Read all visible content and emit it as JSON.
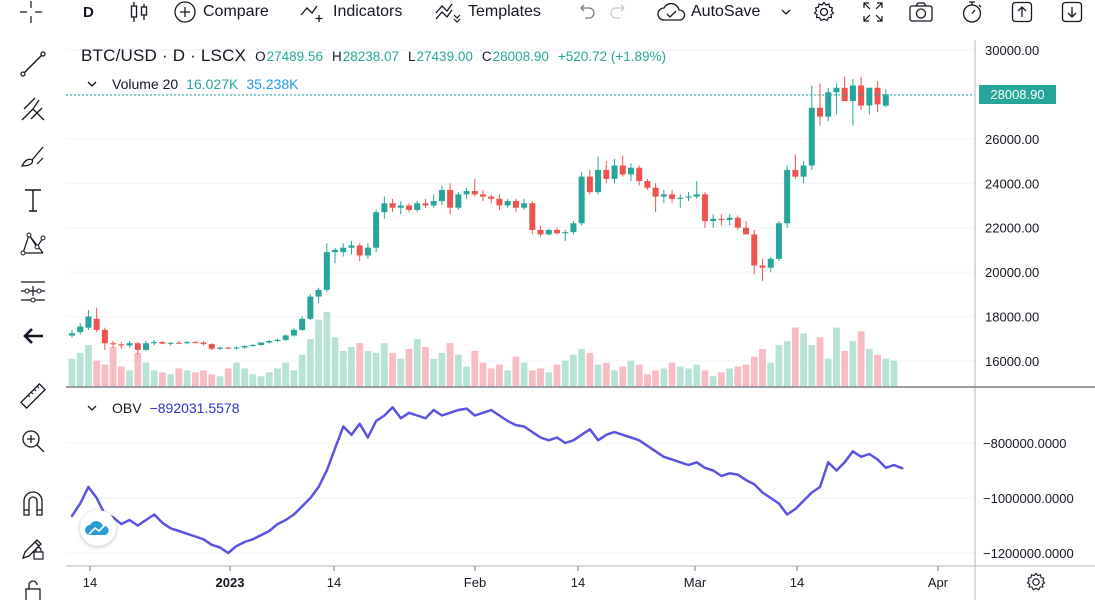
{
  "toolbar": {
    "interval": "D",
    "compare_label": "Compare",
    "indicators_label": "Indicators",
    "templates_label": "Templates",
    "autosave_label": "AutoSave"
  },
  "legend": {
    "symbol": "BTC/USD · D · LSCX",
    "open_key": "O",
    "open": "27489.56",
    "high_key": "H",
    "high": "28238.07",
    "low_key": "L",
    "low": "27439.00",
    "close_key": "C",
    "close": "28008.90",
    "change": "+520.72 (+1.89%)"
  },
  "volume": {
    "name": "Volume 20",
    "value1": "16.027K",
    "value2": "35.238K"
  },
  "obv": {
    "name": "OBV",
    "value": "−892031.5578"
  },
  "last_price": "28008.90",
  "colors": {
    "up": "#26a69a",
    "down": "#ef5350",
    "obv_line": "#5a52e0",
    "accent": "#2962ff"
  },
  "chart_data": [
    {
      "type": "candlestick",
      "title": "BTC/USD · D · LSCX",
      "y_ticks": [
        "30000.00",
        "28000.00",
        "26000.00",
        "24000.00",
        "22000.00",
        "20000.00",
        "18000.00",
        "16000.00"
      ],
      "x_ticks": [
        "14",
        "2023",
        "14",
        "Feb",
        "14",
        "Mar",
        "14",
        "Apr"
      ],
      "ylim": [
        15000,
        30500
      ],
      "candles": [
        {
          "o": 17150,
          "h": 17400,
          "l": 17050,
          "c": 17250
        },
        {
          "o": 17300,
          "h": 17700,
          "l": 17200,
          "c": 17550
        },
        {
          "o": 17500,
          "h": 18300,
          "l": 17400,
          "c": 18000
        },
        {
          "o": 17900,
          "h": 18400,
          "l": 17300,
          "c": 17400
        },
        {
          "o": 17400,
          "h": 17500,
          "l": 16500,
          "c": 16800
        },
        {
          "o": 16800,
          "h": 16900,
          "l": 16600,
          "c": 16750
        },
        {
          "o": 16750,
          "h": 16850,
          "l": 16550,
          "c": 16700
        },
        {
          "o": 16700,
          "h": 16900,
          "l": 16600,
          "c": 16800
        },
        {
          "o": 16800,
          "h": 16850,
          "l": 16300,
          "c": 16500
        },
        {
          "o": 16500,
          "h": 16900,
          "l": 16450,
          "c": 16800
        },
        {
          "o": 16800,
          "h": 16950,
          "l": 16700,
          "c": 16850
        },
        {
          "o": 16850,
          "h": 16900,
          "l": 16750,
          "c": 16780
        },
        {
          "o": 16780,
          "h": 16850,
          "l": 16700,
          "c": 16820
        },
        {
          "o": 16820,
          "h": 16900,
          "l": 16750,
          "c": 16800
        },
        {
          "o": 16800,
          "h": 16900,
          "l": 16750,
          "c": 16850
        },
        {
          "o": 16850,
          "h": 16900,
          "l": 16800,
          "c": 16830
        },
        {
          "o": 16830,
          "h": 16900,
          "l": 16700,
          "c": 16760
        },
        {
          "o": 16760,
          "h": 16800,
          "l": 16500,
          "c": 16550
        },
        {
          "o": 16550,
          "h": 16650,
          "l": 16500,
          "c": 16600
        },
        {
          "o": 16600,
          "h": 16650,
          "l": 16550,
          "c": 16580
        },
        {
          "o": 16580,
          "h": 16650,
          "l": 16500,
          "c": 16610
        },
        {
          "o": 16610,
          "h": 16700,
          "l": 16550,
          "c": 16680
        },
        {
          "o": 16680,
          "h": 16760,
          "l": 16640,
          "c": 16720
        },
        {
          "o": 16720,
          "h": 16850,
          "l": 16680,
          "c": 16830
        },
        {
          "o": 16830,
          "h": 16950,
          "l": 16780,
          "c": 16900
        },
        {
          "o": 16900,
          "h": 17000,
          "l": 16850,
          "c": 16950
        },
        {
          "o": 16950,
          "h": 17200,
          "l": 16900,
          "c": 17150
        },
        {
          "o": 17150,
          "h": 17500,
          "l": 17100,
          "c": 17400
        },
        {
          "o": 17400,
          "h": 18000,
          "l": 17350,
          "c": 17900
        },
        {
          "o": 17900,
          "h": 19000,
          "l": 17850,
          "c": 18900
        },
        {
          "o": 18900,
          "h": 19300,
          "l": 18600,
          "c": 19200
        },
        {
          "o": 19200,
          "h": 21300,
          "l": 19100,
          "c": 20900
        },
        {
          "o": 20900,
          "h": 21100,
          "l": 20400,
          "c": 21000
        },
        {
          "o": 20900,
          "h": 21300,
          "l": 20700,
          "c": 21100
        },
        {
          "o": 21100,
          "h": 21400,
          "l": 20800,
          "c": 21200
        },
        {
          "o": 21200,
          "h": 21300,
          "l": 20500,
          "c": 20750
        },
        {
          "o": 20750,
          "h": 21300,
          "l": 20600,
          "c": 21100
        },
        {
          "o": 21100,
          "h": 22800,
          "l": 20900,
          "c": 22700
        },
        {
          "o": 22700,
          "h": 23400,
          "l": 22400,
          "c": 23100
        },
        {
          "o": 23100,
          "h": 23300,
          "l": 22700,
          "c": 22900
        },
        {
          "o": 22900,
          "h": 23200,
          "l": 22600,
          "c": 23000
        },
        {
          "o": 23000,
          "h": 23100,
          "l": 22700,
          "c": 22800
        },
        {
          "o": 22800,
          "h": 23200,
          "l": 22700,
          "c": 23100
        },
        {
          "o": 23100,
          "h": 23300,
          "l": 22900,
          "c": 23000
        },
        {
          "o": 23000,
          "h": 23500,
          "l": 22900,
          "c": 23200
        },
        {
          "o": 23200,
          "h": 23900,
          "l": 23000,
          "c": 23700
        },
        {
          "o": 23700,
          "h": 24000,
          "l": 22600,
          "c": 22900
        },
        {
          "o": 22900,
          "h": 23600,
          "l": 22800,
          "c": 23500
        },
        {
          "o": 23500,
          "h": 23800,
          "l": 23300,
          "c": 23650
        },
        {
          "o": 23650,
          "h": 24200,
          "l": 23400,
          "c": 23500
        },
        {
          "o": 23500,
          "h": 23700,
          "l": 23200,
          "c": 23400
        },
        {
          "o": 23400,
          "h": 23500,
          "l": 23100,
          "c": 23300
        },
        {
          "o": 23300,
          "h": 23500,
          "l": 22800,
          "c": 23000
        },
        {
          "o": 23000,
          "h": 23300,
          "l": 22900,
          "c": 23200
        },
        {
          "o": 23200,
          "h": 23300,
          "l": 22700,
          "c": 22900
        },
        {
          "o": 22900,
          "h": 23300,
          "l": 22800,
          "c": 23100
        },
        {
          "o": 23100,
          "h": 23200,
          "l": 21700,
          "c": 21900
        },
        {
          "o": 21900,
          "h": 22100,
          "l": 21600,
          "c": 21700
        },
        {
          "o": 21700,
          "h": 21950,
          "l": 21650,
          "c": 21900
        },
        {
          "o": 21900,
          "h": 22000,
          "l": 21700,
          "c": 21750
        },
        {
          "o": 21750,
          "h": 21900,
          "l": 21400,
          "c": 21800
        },
        {
          "o": 21800,
          "h": 22300,
          "l": 21700,
          "c": 22200
        },
        {
          "o": 22200,
          "h": 24500,
          "l": 22100,
          "c": 24300
        },
        {
          "o": 24300,
          "h": 24600,
          "l": 23500,
          "c": 23600
        },
        {
          "o": 23600,
          "h": 25200,
          "l": 23500,
          "c": 24600
        },
        {
          "o": 24600,
          "h": 25000,
          "l": 24000,
          "c": 24200
        },
        {
          "o": 24200,
          "h": 25100,
          "l": 24000,
          "c": 24800
        },
        {
          "o": 24800,
          "h": 25250,
          "l": 24300,
          "c": 24400
        },
        {
          "o": 24400,
          "h": 24900,
          "l": 24100,
          "c": 24700
        },
        {
          "o": 24700,
          "h": 24800,
          "l": 23900,
          "c": 24100
        },
        {
          "o": 24100,
          "h": 24200,
          "l": 23700,
          "c": 23800
        },
        {
          "o": 23800,
          "h": 24000,
          "l": 22700,
          "c": 23400
        },
        {
          "o": 23400,
          "h": 23700,
          "l": 23100,
          "c": 23500
        },
        {
          "o": 23500,
          "h": 23700,
          "l": 23100,
          "c": 23300
        },
        {
          "o": 23300,
          "h": 23500,
          "l": 22900,
          "c": 23350
        },
        {
          "o": 23350,
          "h": 23600,
          "l": 23200,
          "c": 23400
        },
        {
          "o": 23400,
          "h": 24100,
          "l": 23300,
          "c": 23500
        },
        {
          "o": 23500,
          "h": 23600,
          "l": 22000,
          "c": 22300
        },
        {
          "o": 22300,
          "h": 22600,
          "l": 22000,
          "c": 22400
        },
        {
          "o": 22400,
          "h": 22600,
          "l": 22100,
          "c": 22350
        },
        {
          "o": 22350,
          "h": 22600,
          "l": 22100,
          "c": 22450
        },
        {
          "o": 22450,
          "h": 22550,
          "l": 21900,
          "c": 22000
        },
        {
          "o": 22000,
          "h": 22300,
          "l": 21800,
          "c": 21700
        },
        {
          "o": 21700,
          "h": 21900,
          "l": 19900,
          "c": 20300
        },
        {
          "o": 20300,
          "h": 20600,
          "l": 19600,
          "c": 20200
        },
        {
          "o": 20200,
          "h": 20700,
          "l": 20000,
          "c": 20600
        },
        {
          "o": 20600,
          "h": 22300,
          "l": 20500,
          "c": 22200
        },
        {
          "o": 22200,
          "h": 24800,
          "l": 22000,
          "c": 24600
        },
        {
          "o": 24600,
          "h": 25300,
          "l": 24200,
          "c": 24300
        },
        {
          "o": 24300,
          "h": 25000,
          "l": 24000,
          "c": 24800
        },
        {
          "o": 24800,
          "h": 28400,
          "l": 24600,
          "c": 27400
        },
        {
          "o": 27400,
          "h": 28500,
          "l": 26600,
          "c": 27000
        },
        {
          "o": 27000,
          "h": 28300,
          "l": 26800,
          "c": 28100
        },
        {
          "o": 28100,
          "h": 28500,
          "l": 27100,
          "c": 28300
        },
        {
          "o": 28300,
          "h": 28800,
          "l": 27800,
          "c": 27700
        },
        {
          "o": 27700,
          "h": 28700,
          "l": 26600,
          "c": 28400
        },
        {
          "o": 28400,
          "h": 28800,
          "l": 27300,
          "c": 27500
        },
        {
          "o": 27500,
          "h": 28300,
          "l": 27100,
          "c": 28300
        },
        {
          "o": 28300,
          "h": 28600,
          "l": 27200,
          "c": 27550
        },
        {
          "o": 27489.56,
          "h": 28238.07,
          "l": 27439.0,
          "c": 28008.9
        }
      ]
    },
    {
      "type": "bar",
      "title": "Volume 20",
      "values": [
        14,
        17,
        21,
        13,
        11,
        20,
        10,
        8,
        17,
        12,
        8,
        7,
        6,
        9,
        8,
        7,
        8,
        6,
        5,
        9,
        12,
        9,
        6,
        5,
        7,
        9,
        12,
        8,
        16,
        24,
        34,
        38,
        25,
        18,
        20,
        22,
        18,
        17,
        22,
        17,
        14,
        19,
        24,
        20,
        14,
        17,
        22,
        16,
        10,
        18,
        12,
        9,
        11,
        8,
        15,
        12,
        8,
        9,
        7,
        11,
        13,
        16,
        19,
        17,
        11,
        12,
        8,
        10,
        13,
        11,
        6,
        8,
        9,
        12,
        10,
        9,
        11,
        8,
        5,
        7,
        9,
        10,
        11,
        15,
        19,
        12,
        21,
        23,
        30,
        27,
        21,
        25,
        14,
        30,
        18,
        23,
        28,
        19,
        16,
        14,
        13
      ],
      "colors": "up/down matching candles"
    },
    {
      "type": "line",
      "title": "OBV",
      "y_ticks": [
        "-800000.0000",
        "-1000000.0000",
        "-1200000.0000"
      ],
      "ylim": [
        -1230000,
        -660000
      ],
      "values": [
        -1065000,
        -1020000,
        -960000,
        -1000000,
        -1060000,
        -1070000,
        -1095000,
        -1080000,
        -1100000,
        -1080000,
        -1060000,
        -1090000,
        -1110000,
        -1120000,
        -1130000,
        -1140000,
        -1150000,
        -1170000,
        -1180000,
        -1200000,
        -1175000,
        -1160000,
        -1150000,
        -1135000,
        -1120000,
        -1095000,
        -1080000,
        -1060000,
        -1030000,
        -1000000,
        -960000,
        -900000,
        -820000,
        -740000,
        -770000,
        -730000,
        -780000,
        -720000,
        -700000,
        -670000,
        -710000,
        -690000,
        -700000,
        -710000,
        -680000,
        -700000,
        -690000,
        -680000,
        -675000,
        -700000,
        -690000,
        -680000,
        -700000,
        -720000,
        -735000,
        -740000,
        -760000,
        -780000,
        -790000,
        -780000,
        -800000,
        -790000,
        -770000,
        -750000,
        -790000,
        -770000,
        -760000,
        -770000,
        -780000,
        -790000,
        -810000,
        -830000,
        -850000,
        -860000,
        -870000,
        -880000,
        -870000,
        -890000,
        -900000,
        -920000,
        -910000,
        -915000,
        -935000,
        -950000,
        -980000,
        -1000000,
        -1020000,
        -1060000,
        -1040000,
        -1010000,
        -980000,
        -960000,
        -870000,
        -900000,
        -870000,
        -830000,
        -850000,
        -840000,
        -860000,
        -890000,
        -880000,
        -892031
      ]
    }
  ]
}
